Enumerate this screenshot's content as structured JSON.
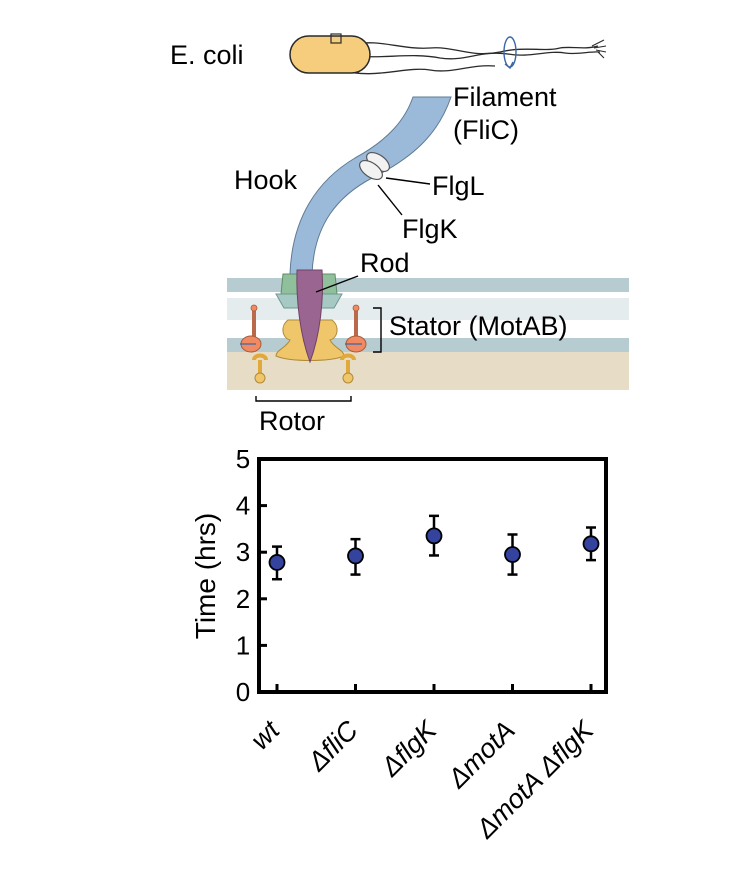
{
  "diagram": {
    "organism": "E. coli",
    "labels": {
      "filament_line1": "Filament",
      "filament_line2": "(FliC)",
      "hook": "Hook",
      "flgL": "FlgL",
      "flgK": "FlgK",
      "rod": "Rod",
      "stator": "Stator (MotAB)",
      "rotor": "Rotor"
    },
    "colors": {
      "filament": "#9bbad9",
      "rod": "#9b6591",
      "membrane": "#b7ccd0",
      "periplasm": "#e4eced",
      "cytoplasm": "#e7dcc6",
      "ring_green": "#8fbf9b",
      "ring_teal": "#a6cac3",
      "rotor_yellow": "#f0c66a",
      "stator_orange": "#ef8a63",
      "cell_body": "#f6cd7c",
      "marker": "#33439e"
    }
  },
  "chart_data": {
    "type": "scatter",
    "title": "",
    "xlabel": "",
    "ylabel": "Time (hrs)",
    "ylim": [
      0,
      5
    ],
    "yticks": [
      0,
      1,
      2,
      3,
      4,
      5
    ],
    "categories": [
      "wt",
      "ΔfliC",
      "ΔflgK",
      "ΔmotA",
      "ΔmotA ΔflgK"
    ],
    "series": [
      {
        "name": "Time",
        "values": [
          2.78,
          2.92,
          3.35,
          2.95,
          3.18
        ],
        "error_low": [
          2.42,
          2.52,
          2.93,
          2.52,
          2.83
        ],
        "error_high": [
          3.12,
          3.28,
          3.78,
          3.38,
          3.53
        ]
      }
    ],
    "grid": false,
    "legend": "none"
  }
}
